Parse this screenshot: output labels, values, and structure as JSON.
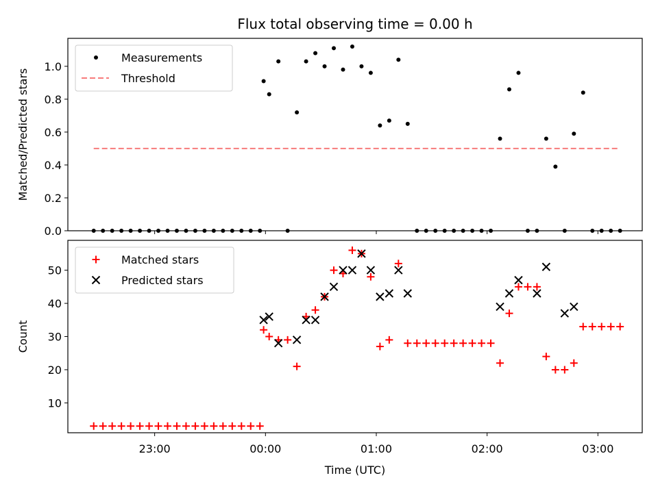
{
  "title": "Flux total observing time = 0.00 h",
  "chart_data": [
    {
      "type": "scatter",
      "ylabel": "Matched/Predicted stars",
      "ylim": [
        0,
        1.17
      ],
      "yticks": [
        "0.0",
        "0.2",
        "0.4",
        "0.6",
        "0.8",
        "1.0"
      ],
      "xlim": [
        "22:13",
        "03:24"
      ],
      "legend_position": "top-left",
      "series": [
        {
          "name": "Measurements",
          "marker": "dot",
          "color": "#000000",
          "x": [
            "22:27",
            "22:32",
            "22:37",
            "22:42",
            "22:47",
            "22:52",
            "22:57",
            "23:02",
            "23:07",
            "23:12",
            "23:17",
            "23:22",
            "23:27",
            "23:32",
            "23:37",
            "23:42",
            "23:47",
            "23:52",
            "23:57",
            "23:59",
            "00:02",
            "00:07",
            "00:12",
            "00:17",
            "00:22",
            "00:27",
            "00:32",
            "00:37",
            "00:42",
            "00:47",
            "00:52",
            "00:57",
            "01:02",
            "01:07",
            "01:12",
            "01:17",
            "01:22",
            "01:27",
            "01:32",
            "01:37",
            "01:42",
            "01:47",
            "01:52",
            "01:57",
            "02:02",
            "02:07",
            "02:12",
            "02:17",
            "02:22",
            "02:27",
            "02:32",
            "02:37",
            "02:42",
            "02:47",
            "02:52",
            "02:57",
            "03:02",
            "03:07",
            "03:12"
          ],
          "y": [
            0,
            0,
            0,
            0,
            0,
            0,
            0,
            0,
            0,
            0,
            0,
            0,
            0,
            0,
            0,
            0,
            0,
            0,
            0,
            0.91,
            0.83,
            1.03,
            0,
            0.72,
            1.03,
            1.08,
            1.0,
            1.11,
            0.98,
            1.12,
            1.0,
            0.96,
            0.64,
            0.67,
            1.04,
            0.65,
            0,
            0,
            0,
            0,
            0,
            0,
            0,
            0,
            0,
            0.56,
            0.86,
            0.96,
            0,
            0,
            0.56,
            0.39,
            0,
            0.59,
            0.84,
            0,
            0,
            0,
            0
          ]
        },
        {
          "name": "Threshold",
          "style": "dashed",
          "color": "#f77a7a",
          "x": [
            "22:27",
            "03:12"
          ],
          "y": [
            0.5,
            0.5
          ]
        }
      ]
    },
    {
      "type": "scatter",
      "ylabel": "Count",
      "xlabel": "Time (UTC)",
      "ylim": [
        1,
        59
      ],
      "yticks": [
        "10",
        "20",
        "30",
        "40",
        "50"
      ],
      "xlim": [
        "22:13",
        "03:24"
      ],
      "xticks": [
        "23:00",
        "00:00",
        "01:00",
        "02:00",
        "03:00"
      ],
      "legend_position": "top-left",
      "series": [
        {
          "name": "Matched stars",
          "marker": "plus",
          "color": "#ff0000",
          "x": [
            "22:27",
            "22:32",
            "22:37",
            "22:42",
            "22:47",
            "22:52",
            "22:57",
            "23:02",
            "23:07",
            "23:12",
            "23:17",
            "23:22",
            "23:27",
            "23:32",
            "23:37",
            "23:42",
            "23:47",
            "23:52",
            "23:57",
            "23:59",
            "00:02",
            "00:07",
            "00:12",
            "00:17",
            "00:22",
            "00:27",
            "00:32",
            "00:37",
            "00:42",
            "00:47",
            "00:52",
            "00:57",
            "01:02",
            "01:07",
            "01:12",
            "01:17",
            "01:22",
            "01:27",
            "01:32",
            "01:37",
            "01:42",
            "01:47",
            "01:52",
            "01:57",
            "02:02",
            "02:07",
            "02:12",
            "02:17",
            "02:22",
            "02:27",
            "02:32",
            "02:37",
            "02:42",
            "02:47",
            "02:52",
            "02:57",
            "03:02",
            "03:07",
            "03:12"
          ],
          "y": [
            3,
            3,
            3,
            3,
            3,
            3,
            3,
            3,
            3,
            3,
            3,
            3,
            3,
            3,
            3,
            3,
            3,
            3,
            3,
            32,
            30,
            29,
            29,
            21,
            36,
            38,
            42,
            50,
            49,
            56,
            55,
            48,
            27,
            29,
            52,
            28,
            28,
            28,
            28,
            28,
            28,
            28,
            28,
            28,
            28,
            22,
            37,
            45,
            45,
            45,
            24,
            20,
            20,
            22,
            33,
            33,
            33,
            33,
            33
          ]
        },
        {
          "name": "Predicted stars",
          "marker": "x",
          "color": "#000000",
          "x": [
            "23:59",
            "00:02",
            "00:07",
            "00:17",
            "00:22",
            "00:27",
            "00:32",
            "00:37",
            "00:42",
            "00:47",
            "00:52",
            "00:57",
            "01:02",
            "01:07",
            "01:12",
            "01:17",
            "02:07",
            "02:12",
            "02:17",
            "02:27",
            "02:32",
            "02:42",
            "02:47"
          ],
          "y": [
            35,
            36,
            28,
            29,
            35,
            35,
            42,
            45,
            50,
            50,
            55,
            50,
            42,
            43,
            50,
            43,
            39,
            43,
            47,
            43,
            51,
            37,
            39
          ]
        }
      ]
    }
  ]
}
